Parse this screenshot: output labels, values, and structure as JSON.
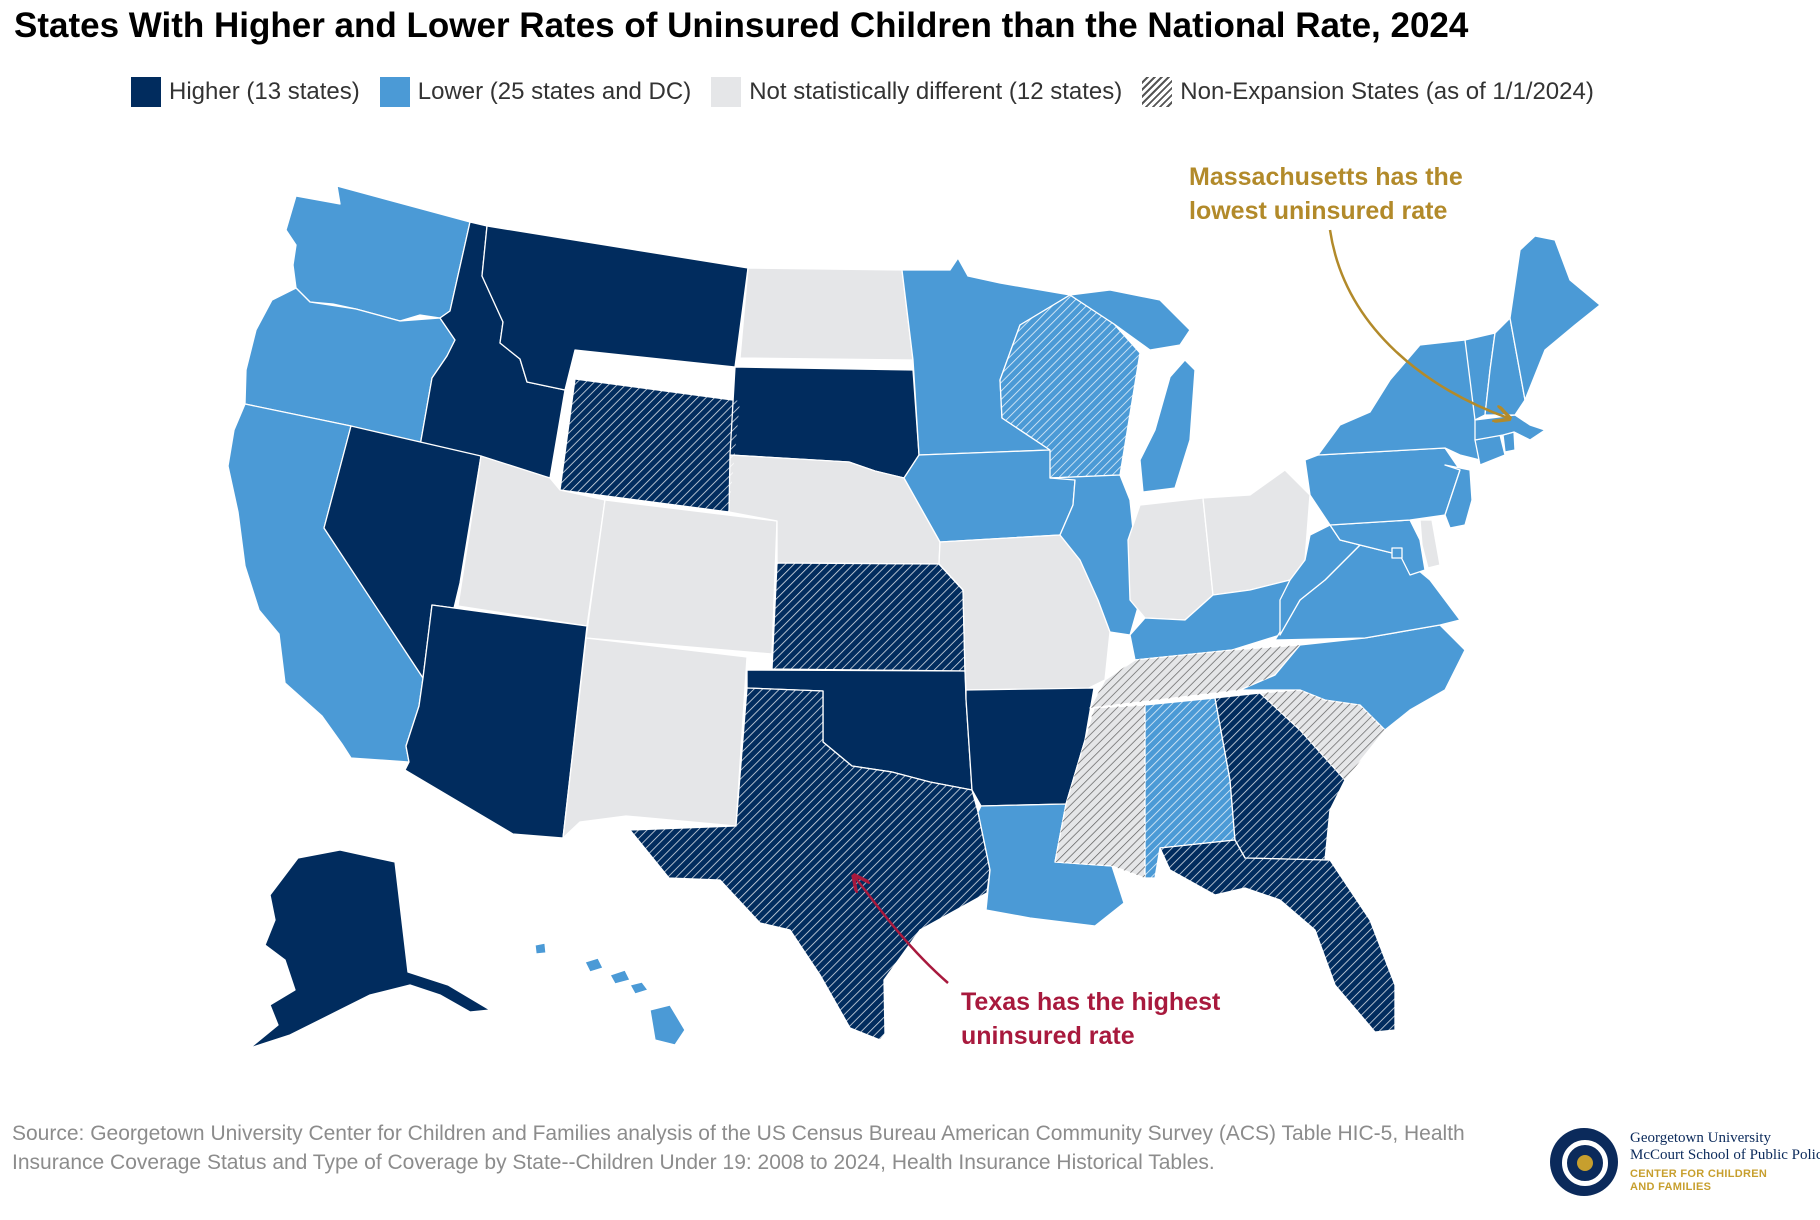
{
  "title": "States With Higher and Lower Rates of Uninsured Children than the National Rate, 2024",
  "legend": [
    {
      "label": "Higher (13 states)",
      "color": "#012c5e",
      "style": "solid"
    },
    {
      "label": "Lower (25 states and DC)",
      "color": "#4b9ad6",
      "style": "solid"
    },
    {
      "label": "Not statistically different (12 states)",
      "color": "#e5e6e8",
      "style": "solid"
    },
    {
      "label": "Non-Expansion States (as of 1/1/2024)",
      "color": "#555555",
      "style": "hatched"
    }
  ],
  "colors": {
    "higher": "#012c5e",
    "lower": "#4b9ad6",
    "not_different": "#e5e6e8",
    "massachusetts_annotation": "#b28a2a",
    "texas_annotation": "#a8193d"
  },
  "annotations": {
    "massachusetts": {
      "line1": "Massachusetts has the",
      "line2": "lowest uninsured rate"
    },
    "texas": {
      "line1": "Texas has the highest",
      "line2": "uninsured rate"
    }
  },
  "states": {
    "WA": {
      "name": "Washington",
      "category": "lower",
      "non_expansion": false
    },
    "OR": {
      "name": "Oregon",
      "category": "lower",
      "non_expansion": false
    },
    "CA": {
      "name": "California",
      "category": "lower",
      "non_expansion": false
    },
    "ID": {
      "name": "Idaho",
      "category": "higher",
      "non_expansion": false
    },
    "NV": {
      "name": "Nevada",
      "category": "higher",
      "non_expansion": false
    },
    "MT": {
      "name": "Montana",
      "category": "higher",
      "non_expansion": false
    },
    "WY": {
      "name": "Wyoming",
      "category": "higher",
      "non_expansion": true
    },
    "UT": {
      "name": "Utah",
      "category": "not_different",
      "non_expansion": false
    },
    "AZ": {
      "name": "Arizona",
      "category": "higher",
      "non_expansion": false
    },
    "CO": {
      "name": "Colorado",
      "category": "not_different",
      "non_expansion": false
    },
    "NM": {
      "name": "New Mexico",
      "category": "not_different",
      "non_expansion": false
    },
    "ND": {
      "name": "North Dakota",
      "category": "not_different",
      "non_expansion": false
    },
    "SD": {
      "name": "South Dakota",
      "category": "higher",
      "non_expansion": false
    },
    "NE": {
      "name": "Nebraska",
      "category": "not_different",
      "non_expansion": false
    },
    "KS": {
      "name": "Kansas",
      "category": "higher",
      "non_expansion": true
    },
    "OK": {
      "name": "Oklahoma",
      "category": "higher",
      "non_expansion": false
    },
    "TX": {
      "name": "Texas",
      "category": "higher",
      "non_expansion": true
    },
    "MN": {
      "name": "Minnesota",
      "category": "lower",
      "non_expansion": false
    },
    "IA": {
      "name": "Iowa",
      "category": "lower",
      "non_expansion": false
    },
    "MO": {
      "name": "Missouri",
      "category": "not_different",
      "non_expansion": false
    },
    "AR": {
      "name": "Arkansas",
      "category": "higher",
      "non_expansion": false
    },
    "LA": {
      "name": "Louisiana",
      "category": "lower",
      "non_expansion": false
    },
    "WI": {
      "name": "Wisconsin",
      "category": "lower",
      "non_expansion": true
    },
    "IL": {
      "name": "Illinois",
      "category": "lower",
      "non_expansion": false
    },
    "MI": {
      "name": "Michigan",
      "category": "lower",
      "non_expansion": false
    },
    "IN": {
      "name": "Indiana",
      "category": "not_different",
      "non_expansion": false
    },
    "OH": {
      "name": "Ohio",
      "category": "not_different",
      "non_expansion": false
    },
    "KY": {
      "name": "Kentucky",
      "category": "lower",
      "non_expansion": false
    },
    "TN": {
      "name": "Tennessee",
      "category": "not_different",
      "non_expansion": true
    },
    "MS": {
      "name": "Mississippi",
      "category": "not_different",
      "non_expansion": true
    },
    "AL": {
      "name": "Alabama",
      "category": "lower",
      "non_expansion": true
    },
    "GA": {
      "name": "Georgia",
      "category": "higher",
      "non_expansion": true
    },
    "FL": {
      "name": "Florida",
      "category": "higher",
      "non_expansion": true
    },
    "SC": {
      "name": "South Carolina",
      "category": "not_different",
      "non_expansion": true
    },
    "NC": {
      "name": "North Carolina",
      "category": "lower",
      "non_expansion": false
    },
    "VA": {
      "name": "Virginia",
      "category": "lower",
      "non_expansion": false
    },
    "WV": {
      "name": "West Virginia",
      "category": "lower",
      "non_expansion": false
    },
    "MD": {
      "name": "Maryland",
      "category": "lower",
      "non_expansion": false
    },
    "DE": {
      "name": "Delaware",
      "category": "not_different",
      "non_expansion": false
    },
    "DC": {
      "name": "District of Columbia",
      "category": "lower",
      "non_expansion": false
    },
    "PA": {
      "name": "Pennsylvania",
      "category": "lower",
      "non_expansion": false
    },
    "NJ": {
      "name": "New Jersey",
      "category": "lower",
      "non_expansion": false
    },
    "NY": {
      "name": "New York",
      "category": "lower",
      "non_expansion": false
    },
    "CT": {
      "name": "Connecticut",
      "category": "lower",
      "non_expansion": false
    },
    "RI": {
      "name": "Rhode Island",
      "category": "lower",
      "non_expansion": false
    },
    "MA": {
      "name": "Massachusetts",
      "category": "lower",
      "non_expansion": false
    },
    "VT": {
      "name": "Vermont",
      "category": "lower",
      "non_expansion": false
    },
    "NH": {
      "name": "New Hampshire",
      "category": "lower",
      "non_expansion": false
    },
    "ME": {
      "name": "Maine",
      "category": "lower",
      "non_expansion": false
    },
    "AK": {
      "name": "Alaska",
      "category": "higher",
      "non_expansion": false
    },
    "HI": {
      "name": "Hawaii",
      "category": "lower",
      "non_expansion": false
    }
  },
  "source": "Source: Georgetown University Center for Children and Families analysis of the US Census Bureau American Community Survey (ACS) Table HIC-5, Health Insurance Coverage Status and Type of Coverage by State--Children Under 19: 2008 to 2024, Health Insurance Historical Tables.",
  "logo": {
    "line1": "Georgetown University",
    "line2": "McCourt School of Public Policy",
    "line3": "CENTER FOR CHILDREN",
    "line4": "AND FAMILIES"
  }
}
